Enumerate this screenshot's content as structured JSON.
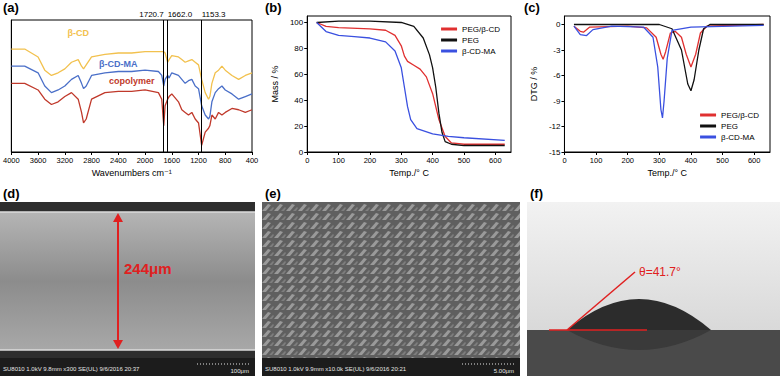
{
  "chart_data": [
    {
      "panel": "(a)",
      "type": "line",
      "x_label": "Wavenumbers cm⁻¹",
      "x": [
        4000,
        3800,
        3600,
        3500,
        3400,
        3300,
        3200,
        3100,
        3000,
        2950,
        2920,
        2880,
        2800,
        2600,
        2400,
        2200,
        2000,
        1800,
        1750,
        1720,
        1700,
        1662,
        1640,
        1600,
        1500,
        1450,
        1400,
        1350,
        1300,
        1250,
        1200,
        1153,
        1100,
        1050,
        1030,
        1000,
        950,
        900,
        850,
        800,
        700,
        600,
        500,
        400
      ],
      "xlim": [
        4000,
        400
      ],
      "xticks": [
        4000,
        3600,
        3200,
        2800,
        2400,
        2000,
        1600,
        1200,
        800,
        400
      ],
      "ylim": [
        0,
        100
      ],
      "tick_labels": "x",
      "grid": false,
      "series": [
        {
          "name": "β-CD",
          "color": "#f2c14e",
          "values": [
            78,
            78,
            72,
            62,
            58,
            60,
            63,
            68,
            70,
            65,
            63,
            66,
            72,
            74,
            75,
            75,
            76,
            76,
            76,
            76,
            75,
            68,
            70,
            73,
            72,
            70,
            68,
            69,
            70,
            68,
            66,
            55,
            45,
            40,
            42,
            52,
            60,
            62,
            65,
            62,
            58,
            55,
            58,
            60
          ]
        },
        {
          "name": "β-CD-MA",
          "color": "#4a6fc8",
          "values": [
            65,
            65,
            60,
            50,
            45,
            47,
            50,
            55,
            58,
            52,
            48,
            50,
            58,
            60,
            61,
            61,
            62,
            61,
            58,
            50,
            55,
            58,
            56,
            60,
            58,
            55,
            52,
            54,
            55,
            50,
            48,
            35,
            28,
            25,
            27,
            38,
            45,
            48,
            50,
            47,
            44,
            40,
            42,
            44
          ]
        },
        {
          "name": "copolymer",
          "color": "#c0392b",
          "values": [
            52,
            52,
            47,
            40,
            36,
            38,
            42,
            45,
            40,
            30,
            22,
            25,
            40,
            45,
            46,
            46,
            47,
            45,
            40,
            20,
            35,
            40,
            42,
            44,
            38,
            32,
            30,
            28,
            30,
            25,
            22,
            5,
            15,
            18,
            20,
            28,
            25,
            30,
            28,
            30,
            33,
            32,
            30,
            32
          ]
        }
      ],
      "annotations": [
        {
          "x": 1662.0,
          "label": "1662.0"
        },
        {
          "x": 1720.7,
          "label": "1720.7"
        },
        {
          "x": 1153.3,
          "label": "1153.3"
        }
      ]
    },
    {
      "panel": "(b)",
      "type": "line",
      "x_label": "Temp./° C",
      "y_label": "Mass / %",
      "xlim": [
        0,
        650
      ],
      "xticks": [
        0,
        100,
        200,
        300,
        400,
        500,
        600
      ],
      "ylim": [
        0,
        105
      ],
      "yticks": [
        0,
        20,
        40,
        60,
        80,
        100
      ],
      "grid": false,
      "legend": "upper right",
      "series": [
        {
          "name": "PEG/β-CD",
          "color": "#e03030",
          "x": [
            30,
            60,
            100,
            200,
            250,
            280,
            300,
            310,
            320,
            340,
            360,
            380,
            400,
            420,
            440,
            460,
            500,
            630
          ],
          "values": [
            100,
            97,
            96,
            95,
            94,
            90,
            82,
            74,
            70,
            67,
            64,
            58,
            45,
            25,
            12,
            7,
            6,
            6
          ]
        },
        {
          "name": "PEG",
          "color": "#111111",
          "x": [
            30,
            100,
            200,
            300,
            340,
            370,
            390,
            400,
            410,
            420,
            430,
            440,
            460,
            500,
            600,
            630
          ],
          "values": [
            100,
            101,
            101,
            100,
            97,
            88,
            75,
            65,
            50,
            30,
            15,
            8,
            6,
            5,
            5,
            5
          ]
        },
        {
          "name": "β-CD-MA",
          "color": "#3a50e0",
          "x": [
            30,
            60,
            100,
            150,
            200,
            250,
            280,
            300,
            310,
            320,
            330,
            350,
            400,
            450,
            500,
            630
          ],
          "values": [
            100,
            93,
            90,
            89,
            88,
            85,
            78,
            65,
            50,
            35,
            25,
            18,
            14,
            12,
            11,
            9
          ]
        }
      ]
    },
    {
      "panel": "(c)",
      "type": "line",
      "x_label": "Temp./° C",
      "y_label": "DTG / %",
      "xlim": [
        0,
        650
      ],
      "xticks": [
        0,
        100,
        200,
        300,
        400,
        500,
        600
      ],
      "ylim": [
        -15,
        1
      ],
      "yticks": [
        -15,
        -12,
        -9,
        -6,
        -3,
        0
      ],
      "grid": false,
      "legend": "lower right",
      "series": [
        {
          "name": "PEG/β-CD",
          "color": "#e03030",
          "x": [
            30,
            50,
            60,
            80,
            200,
            260,
            290,
            305,
            312,
            320,
            335,
            350,
            370,
            385,
            400,
            415,
            430,
            450,
            630
          ],
          "values": [
            -0.2,
            -0.8,
            -0.9,
            -0.3,
            -0.2,
            -0.4,
            -1.5,
            -3.5,
            -4.1,
            -3.2,
            -1,
            -0.8,
            -1.5,
            -3.5,
            -5,
            -3.5,
            -1,
            -0.2,
            0
          ]
        },
        {
          "name": "PEG",
          "color": "#111111",
          "x": [
            30,
            300,
            340,
            370,
            390,
            400,
            410,
            425,
            440,
            460,
            630
          ],
          "values": [
            0,
            0,
            -0.5,
            -3,
            -7,
            -7.8,
            -6.5,
            -3,
            -0.5,
            0,
            0
          ]
        },
        {
          "name": "β-CD-MA",
          "color": "#3a50e0",
          "x": [
            30,
            50,
            70,
            90,
            150,
            250,
            280,
            295,
            305,
            310,
            315,
            325,
            340,
            400,
            630
          ],
          "values": [
            -0.2,
            -1.2,
            -1.3,
            -0.6,
            -0.2,
            -0.3,
            -1.5,
            -5,
            -10,
            -11,
            -9,
            -4,
            -0.7,
            -0.3,
            -0.1
          ]
        }
      ]
    }
  ],
  "images": [
    {
      "panel": "(d)",
      "measure": "244μm",
      "info": "SU8010 1.0kV 9.8mm x300 SE(UL) 9/6/2016 20:37",
      "scale_bar": "100μm"
    },
    {
      "panel": "(e)",
      "info": "SU8010 1.0kV 9.9mm x10.0k SE(UL) 9/6/2016 20:21",
      "scale_bar": "5.00μm"
    },
    {
      "panel": "(f)",
      "angle": "θ=41.7°"
    }
  ]
}
